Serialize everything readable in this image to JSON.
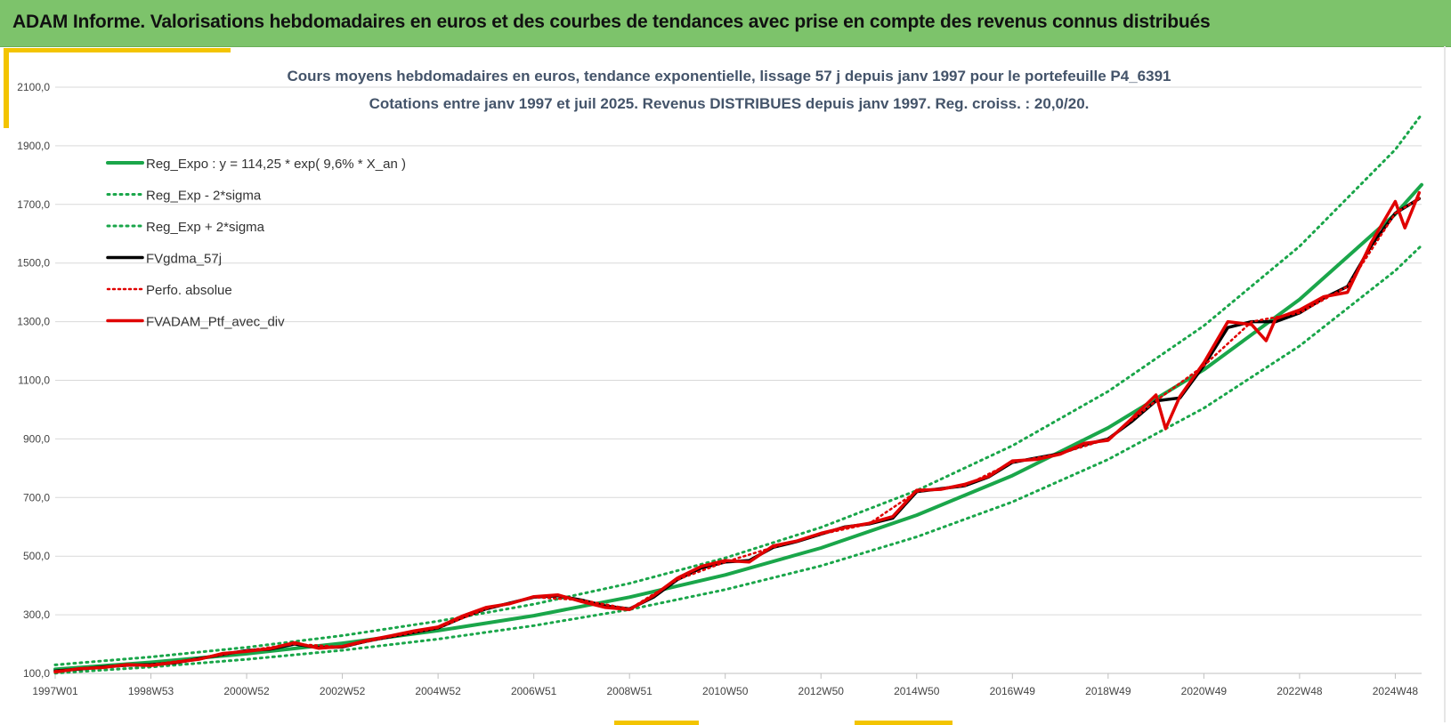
{
  "header": {
    "title": "ADAM Informe. Valorisations hebdomadaires en euros et des courbes de tendances avec prise en compte des revenus connus distribués"
  },
  "colors": {
    "header_bg": "#7dc36b",
    "accent_frame": "#f3c400",
    "reg_expo": "#1aa64a",
    "band": "#1aa64a",
    "fvgdma": "#000000",
    "perfo": "#e00000",
    "fvadam": "#e00000"
  },
  "chart_data": {
    "type": "line",
    "title": "Cours moyens hebdomadaires  en euros, tendance exponentielle, lissage 57 j depuis janv 1997 pour le portefeuille P4_6391",
    "subtitle": "Cotations entre janv 1997 et juil 2025. Revenus DISTRIBUES depuis janv 1997. Reg. croiss. : 20,0/20.",
    "xlabel": "",
    "ylabel": "",
    "ylim": [
      100,
      2100
    ],
    "xlim": [
      1997.0,
      2025.55
    ],
    "yticks": [
      "100,0",
      "300,0",
      "500,0",
      "700,0",
      "900,0",
      "1100,0",
      "1300,0",
      "1500,0",
      "1700,0",
      "1900,0",
      "2100,0"
    ],
    "ytick_values": [
      100,
      300,
      500,
      700,
      900,
      1100,
      1300,
      1500,
      1700,
      1900,
      2100
    ],
    "xticks": [
      "1997W01",
      "1998W53",
      "2000W52",
      "2002W52",
      "2004W52",
      "2006W51",
      "2008W51",
      "2010W50",
      "2012W50",
      "2014W50",
      "2016W49",
      "2018W49",
      "2020W49",
      "2022W48",
      "2024W48"
    ],
    "xtick_values": [
      1997.0,
      1999.0,
      2001.0,
      2003.0,
      2005.0,
      2007.0,
      2009.0,
      2011.0,
      2013.0,
      2015.0,
      2017.0,
      2019.0,
      2021.0,
      2023.0,
      2025.0
    ],
    "grid": true,
    "legend_position": "top-left",
    "series": [
      {
        "name": "Reg_Expo : y = 114,25 * exp( 9,6% *  X_an )",
        "style": "solid",
        "color": "#1aa64a",
        "x": [
          1997.0,
          1999.0,
          2001.0,
          2003.0,
          2005.0,
          2007.0,
          2009.0,
          2011.0,
          2013.0,
          2015.0,
          2017.0,
          2019.0,
          2021.0,
          2023.0,
          2025.0,
          2025.55
        ],
        "y": [
          114,
          138,
          167,
          203,
          246,
          297,
          360,
          436,
          528,
          640,
          775,
          938,
          1136,
          1376,
          1667,
          1767
        ]
      },
      {
        "name": "Reg_Exp - 2*sigma",
        "style": "dotted",
        "color": "#1aa64a",
        "x": [
          1997.0,
          1999.0,
          2001.0,
          2003.0,
          2005.0,
          2007.0,
          2009.0,
          2011.0,
          2013.0,
          2015.0,
          2017.0,
          2019.0,
          2021.0,
          2023.0,
          2025.0,
          2025.55
        ],
        "y": [
          101,
          122,
          148,
          179,
          217,
          263,
          318,
          386,
          467,
          566,
          685,
          830,
          1005,
          1217,
          1474,
          1560
        ]
      },
      {
        "name": "Reg_Exp + 2*sigma",
        "style": "dotted",
        "color": "#1aa64a",
        "x": [
          1997.0,
          1999.0,
          2001.0,
          2003.0,
          2005.0,
          2007.0,
          2009.0,
          2011.0,
          2013.0,
          2015.0,
          2017.0,
          2019.0,
          2021.0,
          2023.0,
          2025.0,
          2025.55
        ],
        "y": [
          129,
          156,
          189,
          229,
          278,
          336,
          407,
          494,
          598,
          724,
          877,
          1062,
          1286,
          1557,
          1887,
          2007
        ]
      },
      {
        "name": "FVgdma_57j",
        "style": "solid-thick",
        "color": "#000000",
        "x": [
          1997.0,
          1997.5,
          1998.0,
          1998.5,
          1999.0,
          1999.5,
          2000.0,
          2000.5,
          2001.0,
          2001.5,
          2002.0,
          2002.5,
          2003.0,
          2003.5,
          2004.0,
          2004.5,
          2005.0,
          2005.5,
          2006.0,
          2006.5,
          2007.0,
          2007.5,
          2008.0,
          2008.5,
          2009.0,
          2009.5,
          2010.0,
          2010.5,
          2011.0,
          2011.5,
          2012.0,
          2012.5,
          2013.0,
          2013.5,
          2014.0,
          2014.5,
          2015.0,
          2015.5,
          2016.0,
          2016.5,
          2017.0,
          2017.5,
          2018.0,
          2018.5,
          2019.0,
          2019.5,
          2020.0,
          2020.5,
          2021.0,
          2021.5,
          2022.0,
          2022.5,
          2023.0,
          2023.5,
          2024.0,
          2024.5,
          2025.0,
          2025.5
        ],
        "y": [
          108,
          115,
          122,
          128,
          130,
          136,
          150,
          165,
          178,
          183,
          200,
          188,
          190,
          210,
          225,
          240,
          255,
          290,
          320,
          340,
          360,
          365,
          350,
          330,
          320,
          360,
          420,
          460,
          480,
          485,
          530,
          550,
          575,
          600,
          610,
          630,
          720,
          730,
          740,
          770,
          820,
          835,
          850,
          880,
          900,
          960,
          1030,
          1040,
          1150,
          1280,
          1300,
          1300,
          1330,
          1380,
          1420,
          1560,
          1670,
          1720
        ]
      },
      {
        "name": "Perfo. absolue",
        "style": "dotted",
        "color": "#e00000",
        "x": [
          1997.0,
          1998.0,
          1999.0,
          2000.0,
          2001.0,
          2002.0,
          2003.0,
          2004.0,
          2005.0,
          2006.0,
          2007.0,
          2008.0,
          2009.0,
          2010.0,
          2011.0,
          2012.0,
          2013.0,
          2014.0,
          2015.0,
          2016.0,
          2017.0,
          2018.0,
          2019.0,
          2020.0,
          2021.0,
          2022.0,
          2023.0,
          2024.0,
          2025.0,
          2025.5
        ],
        "y": [
          108,
          122,
          130,
          150,
          178,
          200,
          190,
          225,
          255,
          320,
          360,
          350,
          320,
          420,
          480,
          530,
          575,
          610,
          720,
          740,
          820,
          850,
          900,
          1030,
          1150,
          1300,
          1330,
          1420,
          1670,
          1720
        ]
      },
      {
        "name": "FVADAM_Ptf_avec_div",
        "style": "solid-thick",
        "color": "#e00000",
        "x": [
          1997.0,
          1997.5,
          1998.0,
          1998.5,
          1999.0,
          1999.5,
          2000.0,
          2000.5,
          2001.0,
          2001.5,
          2002.0,
          2002.5,
          2003.0,
          2003.5,
          2004.0,
          2004.5,
          2005.0,
          2005.5,
          2006.0,
          2006.5,
          2007.0,
          2007.5,
          2008.0,
          2008.5,
          2009.0,
          2009.5,
          2010.0,
          2010.5,
          2011.0,
          2011.5,
          2012.0,
          2012.5,
          2013.0,
          2013.5,
          2014.0,
          2014.5,
          2015.0,
          2015.5,
          2016.0,
          2016.5,
          2017.0,
          2017.5,
          2018.0,
          2018.5,
          2019.0,
          2019.5,
          2020.0,
          2020.2,
          2020.5,
          2021.0,
          2021.5,
          2022.0,
          2022.3,
          2022.5,
          2023.0,
          2023.5,
          2024.0,
          2024.5,
          2025.0,
          2025.2,
          2025.5
        ],
        "y": [
          105,
          116,
          120,
          130,
          127,
          138,
          148,
          168,
          175,
          185,
          205,
          186,
          192,
          212,
          228,
          245,
          258,
          295,
          325,
          338,
          362,
          368,
          345,
          325,
          318,
          365,
          425,
          465,
          485,
          480,
          535,
          552,
          578,
          598,
          612,
          635,
          725,
          728,
          745,
          772,
          825,
          830,
          848,
          885,
          895,
          970,
          1050,
          935,
          1045,
          1160,
          1300,
          1290,
          1235,
          1310,
          1340,
          1385,
          1400,
          1570,
          1710,
          1620,
          1740
        ]
      }
    ]
  }
}
